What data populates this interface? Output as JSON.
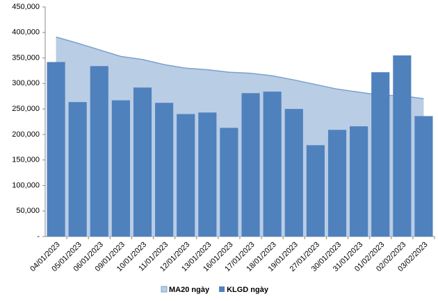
{
  "chart_data": {
    "type": "bar",
    "categories": [
      "04/01/2023",
      "05/01/2023",
      "06/01/2023",
      "09/01/2023",
      "10/01/2023",
      "11/01/2023",
      "12/01/2023",
      "13/01/2023",
      "16/01/2023",
      "17/01/2023",
      "18/01/2023",
      "19/01/2023",
      "27/01/2023",
      "30/01/2023",
      "31/01/2023",
      "01/02/2023",
      "02/02/2023",
      "03/02/2023"
    ],
    "series": [
      {
        "name": "MA20 ngày",
        "type": "area",
        "color": "#b9cde5",
        "line_color": "#7ba0cd",
        "values": [
          391000,
          379000,
          366000,
          353000,
          347000,
          337000,
          330000,
          327000,
          322000,
          320000,
          315000,
          307000,
          298000,
          289000,
          283000,
          277000,
          276000,
          270000
        ]
      },
      {
        "name": "KLGD ngày",
        "type": "bar",
        "color": "#4f81bd",
        "values": [
          342000,
          263500,
          334000,
          267000,
          292000,
          262000,
          240000,
          243000,
          213000,
          281000,
          284000,
          250000,
          179000,
          209000,
          216000,
          322000,
          355000,
          236000
        ]
      }
    ],
    "ylim": [
      0,
      450000
    ],
    "yticks": [
      {
        "value": 0,
        "label": "-"
      },
      {
        "value": 50000,
        "label": "50,000"
      },
      {
        "value": 100000,
        "label": "100,000"
      },
      {
        "value": 150000,
        "label": "150,000"
      },
      {
        "value": 200000,
        "label": "200,000"
      },
      {
        "value": 250000,
        "label": "250,000"
      },
      {
        "value": 300000,
        "label": "300,000"
      },
      {
        "value": 350000,
        "label": "350,000"
      },
      {
        "value": 400000,
        "label": "400,000"
      },
      {
        "value": 450000,
        "label": "450,000"
      }
    ],
    "legend": "bottom"
  }
}
